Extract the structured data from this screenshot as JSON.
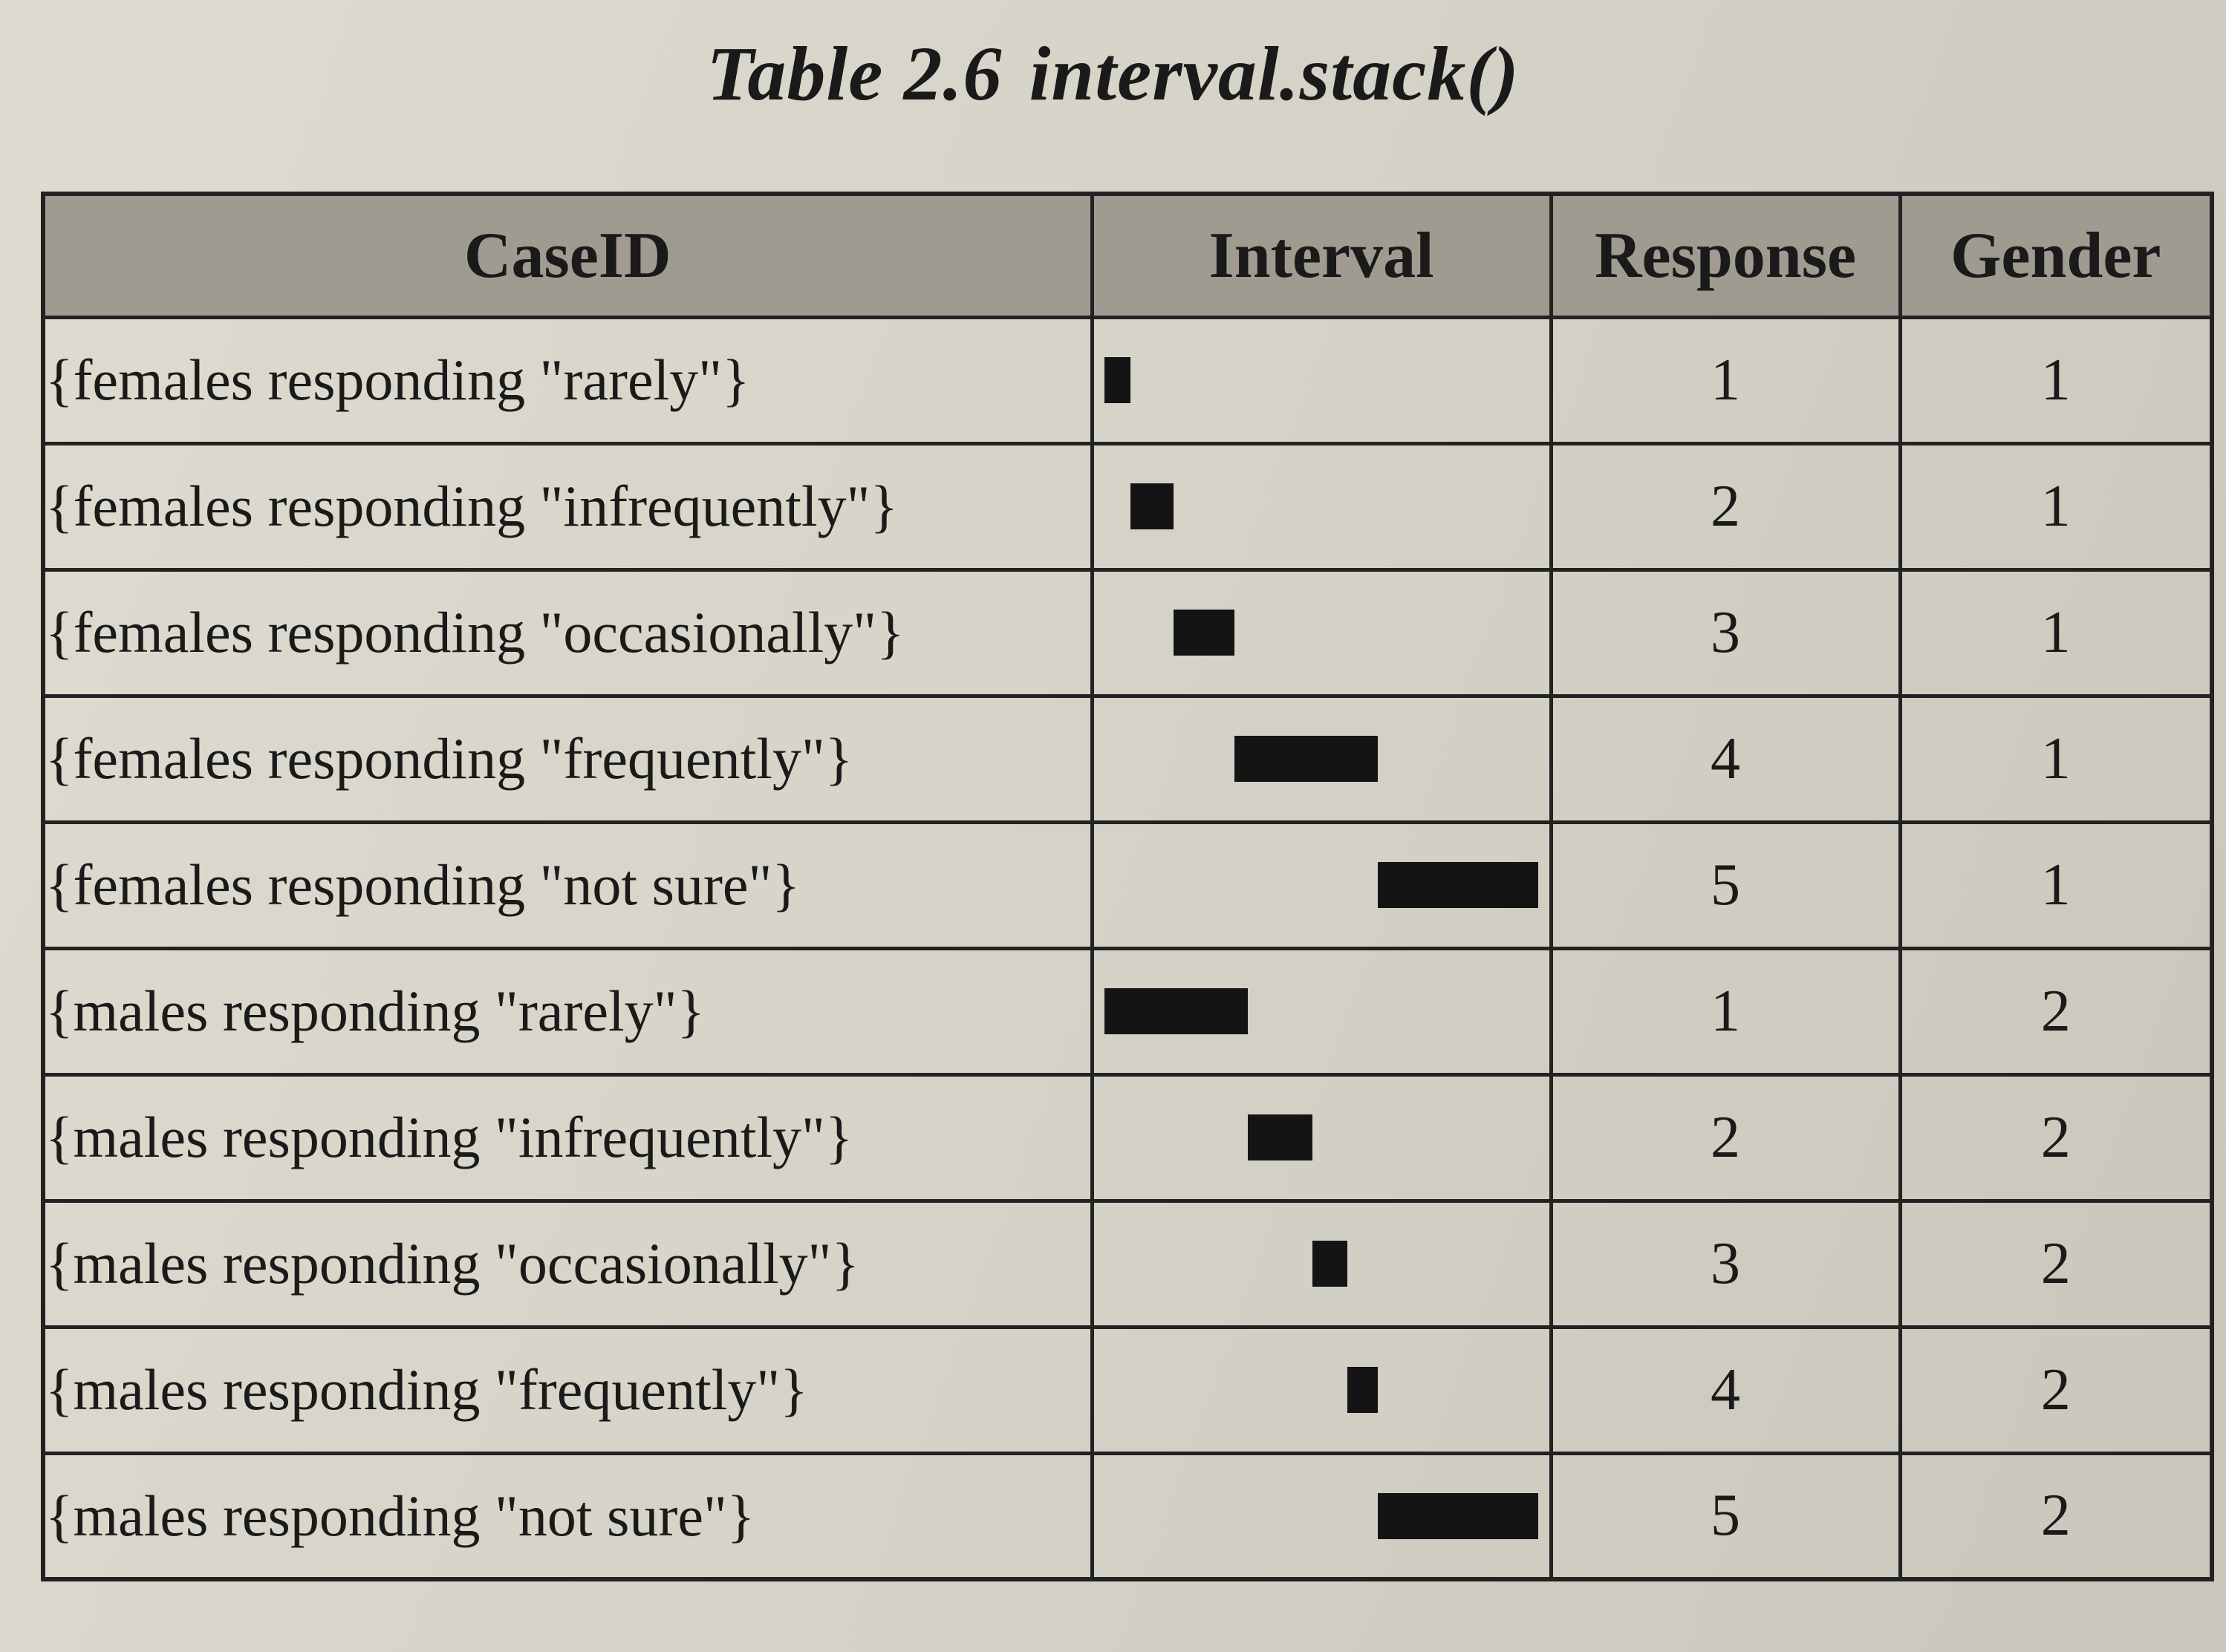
{
  "caption": {
    "label": "Table 2.6",
    "function": "interval.stack()"
  },
  "table": {
    "headers": [
      "CaseID",
      "Interval",
      "Response",
      "Gender"
    ],
    "rows": [
      {
        "case_id": "{females responding \"rarely\"}",
        "interval": [
          0.0,
          0.06
        ],
        "response": "1",
        "gender": "1"
      },
      {
        "case_id": "{females responding \"infrequently\"}",
        "interval": [
          0.06,
          0.16
        ],
        "response": "2",
        "gender": "1"
      },
      {
        "case_id": "{females responding \"occasionally\"}",
        "interval": [
          0.16,
          0.3
        ],
        "response": "3",
        "gender": "1"
      },
      {
        "case_id": "{females responding \"frequently\"}",
        "interval": [
          0.3,
          0.63
        ],
        "response": "4",
        "gender": "1"
      },
      {
        "case_id": "{females responding \"not sure\"}",
        "interval": [
          0.63,
          1.0
        ],
        "response": "5",
        "gender": "1"
      },
      {
        "case_id": "{males responding \"rarely\"}",
        "interval": [
          0.0,
          0.33
        ],
        "response": "1",
        "gender": "2"
      },
      {
        "case_id": "{males responding \"infrequently\"}",
        "interval": [
          0.33,
          0.48
        ],
        "response": "2",
        "gender": "2"
      },
      {
        "case_id": "{males responding \"occasionally\"}",
        "interval": [
          0.48,
          0.56
        ],
        "response": "3",
        "gender": "2"
      },
      {
        "case_id": "{males responding \"frequently\"}",
        "interval": [
          0.56,
          0.63
        ],
        "response": "4",
        "gender": "2"
      },
      {
        "case_id": "{males responding \"not sure\"}",
        "interval": [
          0.63,
          1.0
        ],
        "response": "5",
        "gender": "2"
      }
    ]
  }
}
